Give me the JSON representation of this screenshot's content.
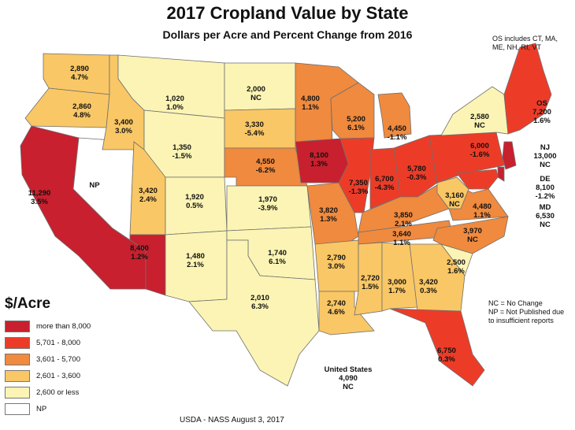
{
  "title": "2017 Cropland Value by State",
  "subtitle": "Dollars per Acre and Percent Change from 2016",
  "os_note": "OS includes CT, MA,\nME, NH, RI, VT",
  "abbrev_notes": "NC = No Change\nNP = Not Published due\nto insufficient reports",
  "us_total": "United States\n4,090\nNC",
  "footer": "USDA - NASS August 3, 2017",
  "legend": {
    "title": "$/Acre",
    "items": [
      {
        "label": "more than 8,000",
        "color": "#c8202e"
      },
      {
        "label": "5,701 - 8,000",
        "color": "#ec3c28"
      },
      {
        "label": "3,601 - 5,700",
        "color": "#f08a3e"
      },
      {
        "label": "2,601 - 3,600",
        "color": "#f9c765"
      },
      {
        "label": "2,600 or less",
        "color": "#fbf4b4"
      },
      {
        "label": "NP",
        "color": "#ffffff"
      }
    ]
  },
  "states": [
    {
      "state": "WA",
      "value": "2,890",
      "change": "4.7%",
      "class": 3
    },
    {
      "state": "OR",
      "value": "2,860",
      "change": "4.8%",
      "class": 3
    },
    {
      "state": "CA",
      "value": "11,290",
      "change": "3.5%",
      "class": 0
    },
    {
      "state": "NV",
      "value": "NP",
      "change": "",
      "class": 5
    },
    {
      "state": "ID",
      "value": "3,400",
      "change": "3.0%",
      "class": 3
    },
    {
      "state": "MT",
      "value": "1,020",
      "change": "1.0%",
      "class": 4
    },
    {
      "state": "WY",
      "value": "1,350",
      "change": "-1.5%",
      "class": 4
    },
    {
      "state": "UT",
      "value": "3,420",
      "change": "2.4%",
      "class": 3
    },
    {
      "state": "AZ",
      "value": "8,400",
      "change": "1.2%",
      "class": 0
    },
    {
      "state": "CO",
      "value": "1,920",
      "change": "0.5%",
      "class": 4
    },
    {
      "state": "NM",
      "value": "1,480",
      "change": "2.1%",
      "class": 4
    },
    {
      "state": "ND",
      "value": "2,000",
      "change": "NC",
      "class": 4
    },
    {
      "state": "SD",
      "value": "3,330",
      "change": "-5.4%",
      "class": 3
    },
    {
      "state": "NE",
      "value": "4,550",
      "change": "-6.2%",
      "class": 2
    },
    {
      "state": "KS",
      "value": "1,970",
      "change": "-3.9%",
      "class": 4
    },
    {
      "state": "OK",
      "value": "1,740",
      "change": "6.1%",
      "class": 4
    },
    {
      "state": "TX",
      "value": "2,010",
      "change": "6.3%",
      "class": 4
    },
    {
      "state": "MN",
      "value": "4,800",
      "change": "1.1%",
      "class": 2
    },
    {
      "state": "IA",
      "value": "8,100",
      "change": "1.3%",
      "class": 0
    },
    {
      "state": "MO",
      "value": "3,820",
      "change": "1.3%",
      "class": 2
    },
    {
      "state": "AR",
      "value": "2,790",
      "change": "3.0%",
      "class": 3
    },
    {
      "state": "LA",
      "value": "2,740",
      "change": "4.6%",
      "class": 3
    },
    {
      "state": "WI",
      "value": "5,200",
      "change": "6.1%",
      "class": 2
    },
    {
      "state": "IL",
      "value": "7,350",
      "change": "-1.3%",
      "class": 1
    },
    {
      "state": "MI",
      "value": "4,450",
      "change": "-1.1%",
      "class": 2
    },
    {
      "state": "IN",
      "value": "6,700",
      "change": "-4.3%",
      "class": 1
    },
    {
      "state": "OH",
      "value": "5,780",
      "change": "-0.3%",
      "class": 1
    },
    {
      "state": "KY",
      "value": "3,850",
      "change": "2.1%",
      "class": 2
    },
    {
      "state": "TN",
      "value": "3,640",
      "change": "1.1%",
      "class": 2
    },
    {
      "state": "MS",
      "value": "2,720",
      "change": "1.5%",
      "class": 3
    },
    {
      "state": "AL",
      "value": "3,000",
      "change": "1.7%",
      "class": 3
    },
    {
      "state": "GA",
      "value": "3,420",
      "change": "0.3%",
      "class": 3
    },
    {
      "state": "FL",
      "value": "6,750",
      "change": "0.3%",
      "class": 1
    },
    {
      "state": "SC",
      "value": "2,500",
      "change": "1.6%",
      "class": 4
    },
    {
      "state": "NC",
      "value": "3,970",
      "change": "NC",
      "class": 2
    },
    {
      "state": "VA",
      "value": "4,480",
      "change": "1.1%",
      "class": 2
    },
    {
      "state": "WV",
      "value": "3,160",
      "change": "NC",
      "class": 3
    },
    {
      "state": "PA",
      "value": "6,000",
      "change": "-1.6%",
      "class": 1
    },
    {
      "state": "NY",
      "value": "2,580",
      "change": "NC",
      "class": 4
    },
    {
      "state": "NJ",
      "value": "13,000",
      "change": "NC",
      "class": 0
    },
    {
      "state": "DE",
      "value": "8,100",
      "change": "-1.2%",
      "class": 0
    },
    {
      "state": "MD",
      "value": "6,530",
      "change": "NC",
      "class": 1
    },
    {
      "state": "OS",
      "value": "7,200",
      "change": "1.6%",
      "class": 1
    }
  ],
  "side_labels": [
    {
      "state": "OS",
      "text": "OS\n7,200\n1.6%"
    },
    {
      "state": "NJ",
      "text": "NJ\n13,000\nNC"
    },
    {
      "state": "DE",
      "text": "DE\n8,100\n-1.2%"
    },
    {
      "state": "MD",
      "text": "MD\n6,530\nNC"
    }
  ]
}
